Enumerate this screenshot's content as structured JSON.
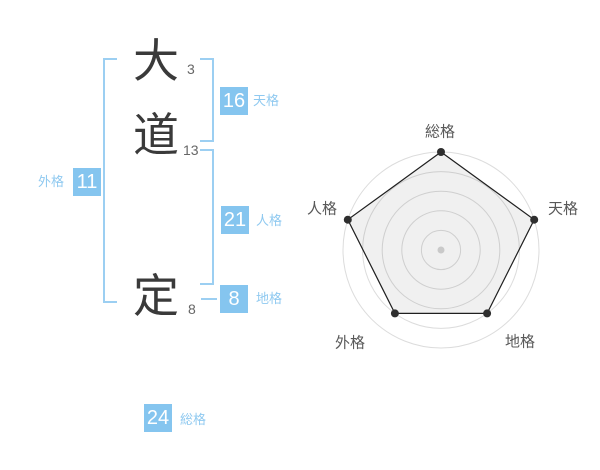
{
  "name_display": {
    "characters": [
      {
        "char": "大",
        "strokes": "3"
      },
      {
        "char": "道",
        "strokes": "13"
      },
      {
        "char": "定",
        "strokes": "8"
      }
    ],
    "categories": {
      "tenkaku": {
        "label": "天格",
        "value": "16"
      },
      "jinkaku": {
        "label": "人格",
        "value": "21"
      },
      "chikaku": {
        "label": "地格",
        "value": "8"
      },
      "gaikaku": {
        "label": "外格",
        "value": "11"
      },
      "soukaku": {
        "label": "総格",
        "value": "24"
      }
    }
  },
  "colors": {
    "accent_blue": "#85c5ef",
    "bracket_blue": "#9ccff2",
    "label_blue": "#8fc9f0",
    "kanji_color": "#3a3a3a",
    "stroke_count_color": "#666666",
    "chart_ring": "#dcdcdc",
    "chart_line": "#1f1f1f",
    "chart_dot": "#2e2e2e",
    "chart_center_dot": "#c9c9c9",
    "chart_fill": "rgba(0,0,0,0.06)",
    "chart_label": "#585858"
  },
  "chart_data": {
    "type": "radar",
    "categories": [
      "総格",
      "天格",
      "地格",
      "外格",
      "人格"
    ],
    "values": [
      5,
      5,
      4,
      4,
      5
    ],
    "max": 5,
    "rings": 5,
    "angles_deg": [
      90,
      18,
      -54,
      -126,
      162
    ],
    "grid": "concentric-circles",
    "legend_position": "none"
  }
}
